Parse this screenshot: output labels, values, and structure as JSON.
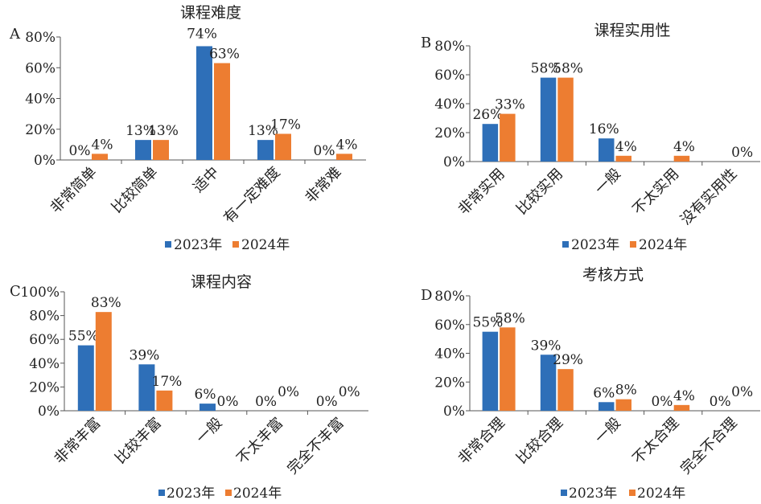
{
  "colors": {
    "series_2023": "#2e6fb8",
    "series_2024": "#ed7d31",
    "axis": "#555555"
  },
  "chart_data": [
    {
      "panel_label": "A",
      "type": "bar",
      "title": "课程难度",
      "categories": [
        "非常简单",
        "比较简单",
        "适中",
        "有一定难度",
        "非常难"
      ],
      "series": [
        {
          "name": "2023年",
          "values": [
            0,
            13,
            74,
            13,
            0
          ]
        },
        {
          "name": "2024年",
          "values": [
            4,
            13,
            63,
            17,
            4
          ]
        }
      ],
      "data_labels": [
        [
          "0%",
          "13%",
          "74%",
          "13%",
          "0%"
        ],
        [
          "4%",
          "13%",
          "63%",
          "17%",
          "4%"
        ]
      ],
      "ylim": [
        0,
        80
      ],
      "yticks": [
        "0%",
        "20%",
        "40%",
        "60%",
        "80%"
      ],
      "legend": "bottom"
    },
    {
      "panel_label": "B",
      "type": "bar",
      "title": "课程实用性",
      "categories": [
        "非常实用",
        "比较实用",
        "一般",
        "不太实用",
        "没有实用性"
      ],
      "series": [
        {
          "name": "2023年",
          "values": [
            26,
            58,
            16,
            0,
            0
          ]
        },
        {
          "name": "2024年",
          "values": [
            33,
            58,
            4,
            4,
            0
          ]
        }
      ],
      "data_labels": [
        [
          "26%",
          "58%",
          "16%",
          "",
          ""
        ],
        [
          "33%",
          "58%",
          "4%",
          "4%",
          "0%"
        ]
      ],
      "ylim": [
        0,
        80
      ],
      "yticks": [
        "0%",
        "20%",
        "40%",
        "60%",
        "80%"
      ],
      "legend": "bottom"
    },
    {
      "panel_label": "C",
      "type": "bar",
      "title": "课程内容",
      "categories": [
        "非常丰富",
        "比较丰富",
        "一般",
        "不太丰富",
        "完全不丰富"
      ],
      "series": [
        {
          "name": "2023年",
          "values": [
            55,
            39,
            6,
            0,
            0
          ]
        },
        {
          "name": "2024年",
          "values": [
            83,
            17,
            0,
            0,
            0
          ]
        }
      ],
      "data_labels": [
        [
          "55%",
          "39%",
          "6%",
          "0%",
          "0%"
        ],
        [
          "83%",
          "17%",
          "0%",
          "0%",
          "0%"
        ]
      ],
      "ylim": [
        0,
        100
      ],
      "yticks": [
        "0%",
        "20%",
        "40%",
        "60%",
        "80%",
        "100%"
      ],
      "legend": "bottom"
    },
    {
      "panel_label": "D",
      "type": "bar",
      "title": "考核方式",
      "categories": [
        "非常合理",
        "比较合理",
        "一般",
        "不太合理",
        "完全不合理"
      ],
      "series": [
        {
          "name": "2023年",
          "values": [
            55,
            39,
            6,
            0,
            0
          ]
        },
        {
          "name": "2024年",
          "values": [
            58,
            29,
            8,
            4,
            0
          ]
        }
      ],
      "data_labels": [
        [
          "55%",
          "39%",
          "6%",
          "0%",
          "0%"
        ],
        [
          "58%",
          "29%",
          "8%",
          "4%",
          "0%"
        ]
      ],
      "ylim": [
        0,
        80
      ],
      "yticks": [
        "0%",
        "20%",
        "40%",
        "60%",
        "80%"
      ],
      "legend": "bottom"
    }
  ]
}
